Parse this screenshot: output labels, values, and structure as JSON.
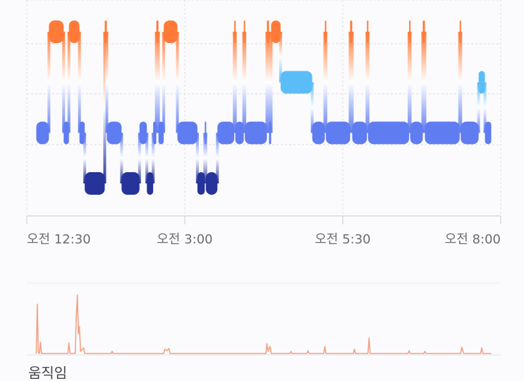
{
  "chart_data": {
    "type": "sleep-stages",
    "xlim": [
      30,
      480
    ],
    "xticks": [
      {
        "value": 30,
        "label": "오전 12:30"
      },
      {
        "value": 180,
        "label": "오전 3:00"
      },
      {
        "value": 330,
        "label": "오전 5:30"
      },
      {
        "value": 480,
        "label": "오전 8:00"
      }
    ],
    "ylim": [
      0,
      3
    ],
    "grid": true,
    "stage_colors": [
      "#26339a",
      "#5f7cf0",
      "#5bbdf8",
      "#ff7a38"
    ],
    "segments": [
      {
        "start": 39,
        "end": 51,
        "level": 1
      },
      {
        "start": 51,
        "end": 65,
        "level": 3
      },
      {
        "start": 65,
        "end": 70,
        "level": 1
      },
      {
        "start": 70,
        "end": 80,
        "level": 3
      },
      {
        "start": 80,
        "end": 85,
        "level": 1
      },
      {
        "start": 85,
        "end": 104,
        "level": 0
      },
      {
        "start": 104,
        "end": 106,
        "level": 3
      },
      {
        "start": 106,
        "end": 120,
        "level": 1
      },
      {
        "start": 120,
        "end": 137,
        "level": 0
      },
      {
        "start": 137,
        "end": 144,
        "level": 1
      },
      {
        "start": 144,
        "end": 150,
        "level": 0
      },
      {
        "start": 150,
        "end": 153,
        "level": 1
      },
      {
        "start": 153,
        "end": 155,
        "level": 3
      },
      {
        "start": 155,
        "end": 160,
        "level": 1
      },
      {
        "start": 160,
        "end": 173,
        "level": 3
      },
      {
        "start": 173,
        "end": 192,
        "level": 1
      },
      {
        "start": 192,
        "end": 199,
        "level": 0
      },
      {
        "start": 199,
        "end": 200,
        "level": 1
      },
      {
        "start": 200,
        "end": 211,
        "level": 0
      },
      {
        "start": 211,
        "end": 227,
        "level": 1
      },
      {
        "start": 227,
        "end": 228,
        "level": 3
      },
      {
        "start": 228,
        "end": 236,
        "level": 1
      },
      {
        "start": 236,
        "end": 237,
        "level": 3
      },
      {
        "start": 237,
        "end": 258,
        "level": 1
      },
      {
        "start": 258,
        "end": 260,
        "level": 3
      },
      {
        "start": 260,
        "end": 262,
        "level": 1
      },
      {
        "start": 262,
        "end": 271,
        "level": 3
      },
      {
        "start": 271,
        "end": 301,
        "level": 2
      },
      {
        "start": 301,
        "end": 313,
        "level": 1
      },
      {
        "start": 313,
        "end": 314,
        "level": 3
      },
      {
        "start": 314,
        "end": 337,
        "level": 1
      },
      {
        "start": 337,
        "end": 339,
        "level": 3
      },
      {
        "start": 339,
        "end": 353,
        "level": 1
      },
      {
        "start": 353,
        "end": 354,
        "level": 3
      },
      {
        "start": 354,
        "end": 393,
        "level": 1
      },
      {
        "start": 393,
        "end": 394,
        "level": 3
      },
      {
        "start": 394,
        "end": 406,
        "level": 1
      },
      {
        "start": 406,
        "end": 408,
        "level": 3
      },
      {
        "start": 408,
        "end": 441,
        "level": 1
      },
      {
        "start": 441,
        "end": 442,
        "level": 3
      },
      {
        "start": 442,
        "end": 459,
        "level": 1
      },
      {
        "start": 459,
        "end": 465,
        "level": 2
      },
      {
        "start": 465,
        "end": 471,
        "level": 1
      }
    ],
    "movement": {
      "label": "움직임",
      "color": "#f3a285",
      "ylim": [
        0,
        100
      ],
      "x": [
        39,
        40,
        41,
        42,
        43,
        44,
        69,
        70,
        71,
        76,
        77,
        78,
        79,
        80,
        81,
        84,
        85,
        110,
        111,
        112,
        160,
        161,
        163,
        165,
        166,
        257,
        258,
        259,
        261,
        262,
        280,
        281,
        282,
        296,
        297,
        298,
        312,
        313,
        314,
        340,
        341,
        342,
        354,
        355,
        356,
        392,
        393,
        394,
        407,
        408,
        409,
        442,
        443,
        444,
        445,
        461,
        462,
        463,
        471
      ],
      "values": [
        2,
        72,
        3,
        2,
        18,
        2,
        2,
        17,
        2,
        2,
        55,
        85,
        30,
        40,
        5,
        10,
        2,
        2,
        5,
        2,
        2,
        8,
        6,
        9,
        2,
        2,
        16,
        5,
        12,
        2,
        2,
        5,
        2,
        2,
        6,
        2,
        2,
        12,
        2,
        2,
        8,
        2,
        2,
        24,
        2,
        2,
        6,
        2,
        2,
        5,
        2,
        2,
        11,
        6,
        2,
        2,
        10,
        2,
        2
      ]
    }
  }
}
